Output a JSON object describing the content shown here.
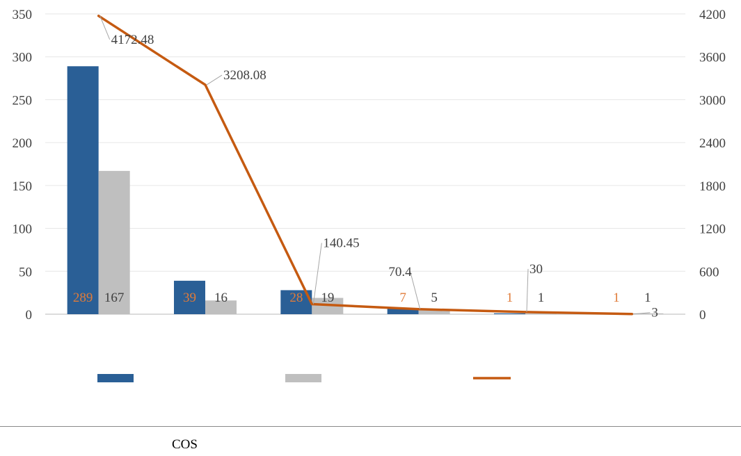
{
  "chart_data": {
    "type": "bar",
    "categories": [
      "",
      "",
      "",
      "",
      "",
      ""
    ],
    "series": [
      {
        "type": "bar",
        "axis": "left",
        "values": [
          289,
          39,
          28,
          7,
          1,
          1
        ],
        "color": "#2a5f96",
        "label_color": "#e07b39"
      },
      {
        "type": "bar",
        "axis": "left",
        "values": [
          167,
          16,
          19,
          5,
          1,
          1
        ],
        "color": "#bfbfbf",
        "label_color": "#404040"
      },
      {
        "type": "line",
        "axis": "right",
        "values": [
          4172.48,
          3208.08,
          140.45,
          70.4,
          30,
          3
        ],
        "color": "#c55a11",
        "label_color": "#404040"
      }
    ],
    "y_left": {
      "ylim": [
        0,
        350
      ],
      "ticks": [
        "0",
        "50",
        "100",
        "150",
        "200",
        "250",
        "300",
        "350"
      ]
    },
    "y_right": {
      "ylim": [
        0,
        4200
      ],
      "ticks": [
        "0",
        "600",
        "1200",
        "1800",
        "2400",
        "3000",
        "3600",
        "4200"
      ]
    },
    "grid": true,
    "legend": "bottom"
  },
  "footer": {
    "text": "COS"
  }
}
